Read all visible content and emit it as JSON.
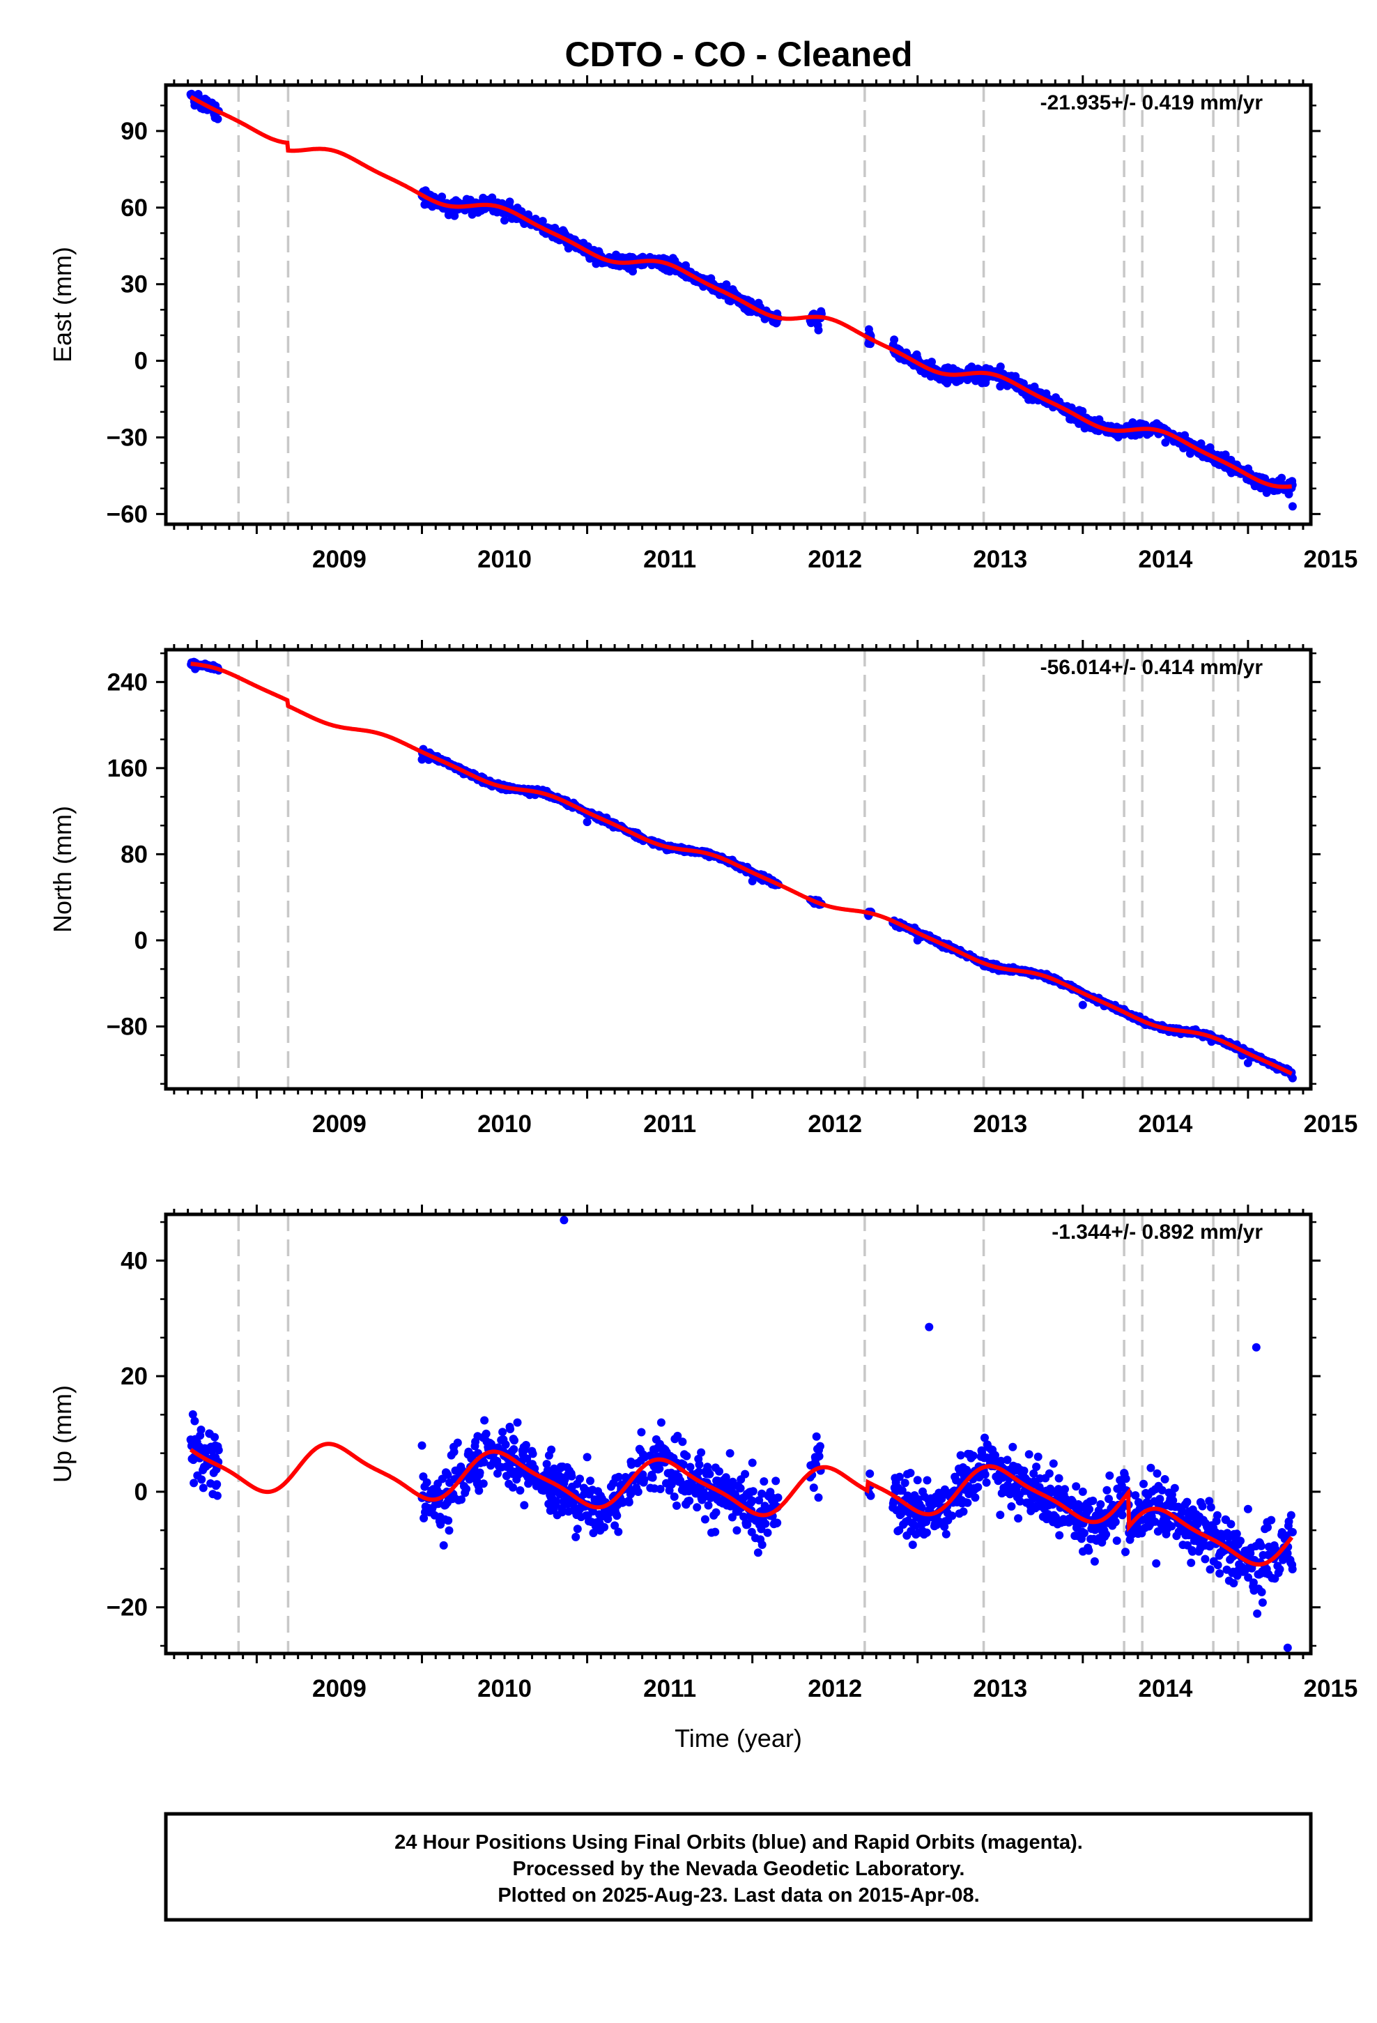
{
  "title": "CDTO  - CO - Cleaned",
  "footer": {
    "lines": [
      "24 Hour Positions Using Final Orbits (blue) and Rapid Orbits (magenta).",
      "Processed by the Nevada Geodetic Laboratory.",
      "Plotted on 2025-Aug-23. Last data on 2015-Apr-08."
    ]
  },
  "colors": {
    "data": "#0000ff",
    "model": "#ff0000",
    "events": "#c8c8c8",
    "axis": "#000000"
  },
  "chart_data": [
    {
      "type": "scatter",
      "name": "east",
      "ylabel": "East (mm)",
      "xlabel": "",
      "rate_text": "-21.935+/- 0.419 mm/yr",
      "xlim": [
        2008.45,
        2015.38
      ],
      "ylim": [
        -64,
        108
      ],
      "xticks": [
        2009,
        2010,
        2011,
        2012,
        2013,
        2014,
        2015
      ],
      "yticks": [
        90,
        60,
        30,
        0,
        -30,
        -60
      ],
      "ytick_labels": [
        "90",
        "60",
        "30",
        "0",
        "−30",
        "−60"
      ],
      "data_ranges": [
        [
          2008.6,
          2008.77
        ],
        [
          2010.0,
          2010.7
        ],
        [
          2010.72,
          2011.35
        ],
        [
          2011.38,
          2012.16
        ],
        [
          2012.35,
          2012.42
        ],
        [
          2012.7,
          2012.72
        ],
        [
          2012.85,
          2015.27
        ]
      ],
      "model": {
        "offset": 101,
        "rate": -21.935,
        "annual_amp": 3.0,
        "annual_phase": 0.3,
        "semi_amp": 0.8,
        "noise": 2.8,
        "jumps": [
          [
            2009.19,
            -3
          ]
        ]
      },
      "series": [
        {
          "name": "daily positions",
          "x": [
            2008.62,
            2008.75,
            2010.0,
            2010.5,
            2011.0,
            2011.5,
            2012.0,
            2012.4,
            2013.0,
            2013.5,
            2014.0,
            2014.5,
            2015.0,
            2015.27
          ],
          "y": [
            103,
            100,
            65,
            55,
            44,
            35,
            20,
            12,
            1,
            -10,
            -22,
            -32,
            -45,
            -57
          ]
        }
      ]
    },
    {
      "type": "scatter",
      "name": "north",
      "ylabel": "North (mm)",
      "xlabel": "",
      "rate_text": "-56.014+/- 0.414 mm/yr",
      "xlim": [
        2008.45,
        2015.38
      ],
      "ylim": [
        -138,
        270
      ],
      "xticks": [
        2009,
        2010,
        2011,
        2012,
        2013,
        2014,
        2015
      ],
      "yticks": [
        240,
        160,
        80,
        0,
        -80
      ],
      "ytick_labels": [
        "240",
        "160",
        "80",
        "0",
        "−80"
      ],
      "data_ranges": [
        [
          2008.6,
          2008.77
        ],
        [
          2010.0,
          2010.7
        ],
        [
          2010.72,
          2011.35
        ],
        [
          2011.38,
          2012.16
        ],
        [
          2012.35,
          2012.42
        ],
        [
          2012.7,
          2012.72
        ],
        [
          2012.85,
          2015.27
        ]
      ],
      "model": {
        "offset": 257,
        "rate": -56.014,
        "annual_amp": 4.0,
        "annual_phase": 0.6,
        "semi_amp": 1.0,
        "noise": 2.5,
        "jumps": [
          [
            2009.19,
            -5
          ]
        ]
      },
      "series": [
        {
          "name": "daily positions",
          "x": [
            2008.62,
            2010.0,
            2011.0,
            2012.0,
            2013.0,
            2014.0,
            2015.0,
            2015.27
          ],
          "y": [
            257,
            168,
            110,
            55,
            0,
            -60,
            -114,
            -128
          ]
        }
      ]
    },
    {
      "type": "scatter",
      "name": "up",
      "ylabel": "Up (mm)",
      "xlabel": "Time (year)",
      "rate_text": "-1.344+/- 0.892 mm/yr",
      "xlim": [
        2008.45,
        2015.38
      ],
      "ylim": [
        -28,
        48
      ],
      "xticks": [
        2009,
        2010,
        2011,
        2012,
        2013,
        2014,
        2015
      ],
      "yticks": [
        40,
        20,
        0,
        -20
      ],
      "ytick_labels": [
        "40",
        "20",
        "0",
        "−20"
      ],
      "data_ranges": [
        [
          2008.6,
          2008.77
        ],
        [
          2010.0,
          2010.7
        ],
        [
          2010.72,
          2011.35
        ],
        [
          2011.38,
          2012.16
        ],
        [
          2012.35,
          2012.42
        ],
        [
          2012.7,
          2012.72
        ],
        [
          2012.85,
          2015.27
        ]
      ],
      "model": {
        "offset": 5,
        "rate": -1.344,
        "annual_amp": 4.0,
        "annual_phase": 0.25,
        "semi_amp": 1.0,
        "noise": 5.5,
        "jumps": [
          [
            2014.28,
            -6
          ],
          [
            2012.7,
            1.5
          ]
        ]
      },
      "series": [
        {
          "name": "daily positions",
          "x": [
            2008.62,
            2008.75,
            2010.0,
            2010.8,
            2011.0,
            2011.5,
            2012.0,
            2012.4,
            2013.0,
            2013.5,
            2014.0,
            2014.4,
            2015.0,
            2015.27
          ],
          "y": [
            6,
            8,
            8,
            4,
            6,
            1,
            5,
            -1,
            2,
            -4,
            0,
            -6,
            -3,
            -7
          ]
        },
        {
          "name": "outliers",
          "x": [
            2010.86,
            2013.07,
            2015.05,
            2015.24
          ],
          "y": [
            47,
            28.5,
            25,
            -27
          ]
        }
      ]
    }
  ],
  "event_lines": [
    2008.89,
    2009.19,
    2012.68,
    2013.4,
    2014.25,
    2014.36,
    2014.79,
    2014.94
  ]
}
